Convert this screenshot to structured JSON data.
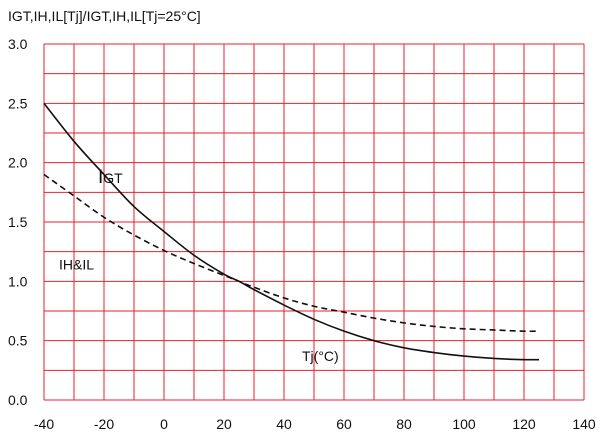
{
  "chart_data": {
    "type": "line",
    "title": "IGT,IH,IL[Tj]/IGT,IH,IL[Tj=25°C]",
    "xlabel": "",
    "ylabel": "",
    "xlim": [
      -40,
      140
    ],
    "ylim": [
      0,
      3.0
    ],
    "x_ticks": [
      "-40",
      "-20",
      "0",
      "20",
      "40",
      "60",
      "80",
      "100",
      "120",
      "140"
    ],
    "y_ticks": [
      "0.0",
      "0.5",
      "1.0",
      "1.5",
      "2.0",
      "2.5",
      "3.0"
    ],
    "grid": true,
    "grid_color": "#e8212b",
    "series": [
      {
        "name": "IGT",
        "style": "solid",
        "color": "#111111",
        "x": [
          -40,
          -30,
          -20,
          -10,
          0,
          10,
          20,
          25,
          30,
          40,
          50,
          60,
          70,
          80,
          90,
          100,
          110,
          120,
          125
        ],
        "y": [
          2.5,
          2.18,
          1.9,
          1.63,
          1.42,
          1.22,
          1.06,
          1.0,
          0.93,
          0.8,
          0.68,
          0.58,
          0.5,
          0.44,
          0.4,
          0.37,
          0.35,
          0.34,
          0.34
        ]
      },
      {
        "name": "IH&IL",
        "style": "dashed",
        "color": "#111111",
        "x": [
          -40,
          -30,
          -20,
          -10,
          0,
          10,
          20,
          25,
          30,
          40,
          50,
          60,
          70,
          80,
          90,
          100,
          110,
          120,
          125
        ],
        "y": [
          1.9,
          1.72,
          1.54,
          1.39,
          1.26,
          1.15,
          1.05,
          1.0,
          0.95,
          0.86,
          0.79,
          0.74,
          0.69,
          0.65,
          0.62,
          0.6,
          0.59,
          0.58,
          0.58
        ]
      }
    ],
    "annotations": [
      {
        "id": "igt",
        "big": "I",
        "small": "GT",
        "x": -22,
        "y": 1.83
      },
      {
        "id": "ihil",
        "text": "IH&IL",
        "x": -35,
        "y": 1.1
      },
      {
        "id": "tj",
        "text": "Tj(°C)",
        "x": 46,
        "y": 0.33
      }
    ]
  }
}
